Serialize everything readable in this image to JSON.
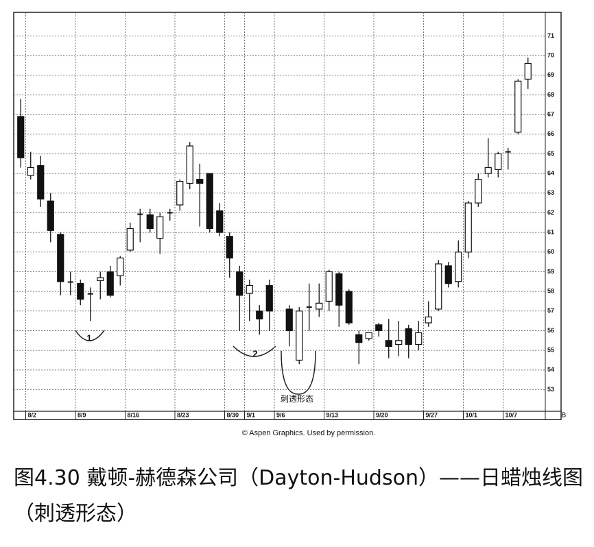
{
  "chart_data": {
    "type": "candlestick",
    "categories": [
      null,
      "8/2",
      null,
      null,
      null,
      null,
      "8/9",
      null,
      null,
      null,
      null,
      "8/16",
      null,
      null,
      null,
      null,
      "8/23",
      null,
      null,
      null,
      null,
      "8/30",
      null,
      "9/1",
      null,
      null,
      "9/6",
      null,
      null,
      null,
      null,
      "9/13",
      null,
      null,
      null,
      null,
      "9/20",
      null,
      null,
      null,
      null,
      "9/27",
      null,
      null,
      null,
      "10/1",
      null,
      null,
      null,
      "10/7",
      null,
      null
    ],
    "open": [
      66.9,
      63.9,
      64.4,
      62.6,
      60.9,
      58.5,
      58.4,
      57.9,
      58.55,
      59.0,
      58.8,
      60.1,
      61.95,
      61.9,
      60.7,
      62.0,
      62.4,
      63.5,
      63.7,
      64.0,
      62.1,
      60.8,
      59.0,
      57.9,
      57.0,
      58.3,
      null,
      57.1,
      54.5,
      57.2,
      57.1,
      57.5,
      58.9,
      58.0,
      55.8,
      55.6,
      56.3,
      55.5,
      55.3,
      56.1,
      55.3,
      56.4,
      57.1,
      59.3,
      58.5,
      60.0,
      62.5,
      64.0,
      64.2,
      65.1,
      66.1,
      68.8
    ],
    "high": [
      67.8,
      65.1,
      64.9,
      63.0,
      61.0,
      59.0,
      58.6,
      58.2,
      59.0,
      59.3,
      59.8,
      61.5,
      62.2,
      62.2,
      62.0,
      62.2,
      63.7,
      65.6,
      64.5,
      64.0,
      62.5,
      61.0,
      59.3,
      58.6,
      57.3,
      58.6,
      null,
      57.3,
      57.2,
      58.4,
      58.4,
      59.1,
      59.0,
      58.1,
      56.0,
      55.9,
      56.4,
      56.6,
      56.5,
      56.3,
      56.5,
      57.5,
      59.6,
      59.5,
      60.6,
      62.6,
      64.0,
      65.8,
      65.1,
      65.3,
      68.8,
      69.9
    ],
    "low": [
      64.3,
      63.7,
      62.3,
      60.5,
      57.8,
      57.8,
      57.3,
      56.5,
      57.6,
      57.7,
      58.3,
      60.0,
      60.5,
      61.0,
      59.9,
      61.6,
      62.1,
      63.2,
      61.3,
      61.0,
      60.8,
      58.7,
      56.0,
      56.5,
      55.8,
      56.0,
      null,
      55.2,
      54.3,
      56.0,
      56.7,
      57.0,
      56.2,
      56.3,
      54.3,
      55.5,
      55.7,
      54.6,
      54.7,
      54.6,
      55.0,
      56.2,
      57.0,
      58.2,
      58.2,
      59.7,
      62.3,
      63.8,
      63.8,
      64.2,
      66.0,
      68.3
    ],
    "close": [
      64.8,
      64.3,
      62.7,
      61.1,
      58.5,
      58.45,
      57.6,
      57.85,
      58.7,
      57.8,
      59.7,
      61.2,
      61.9,
      61.2,
      61.8,
      62.0,
      63.6,
      65.4,
      63.5,
      61.2,
      61.0,
      59.7,
      57.8,
      58.3,
      56.6,
      57.0,
      null,
      56.0,
      57.0,
      57.2,
      57.4,
      59.0,
      57.3,
      56.4,
      55.4,
      55.9,
      56.0,
      55.2,
      55.5,
      55.3,
      55.9,
      56.7,
      59.4,
      58.4,
      60.0,
      62.5,
      63.7,
      64.3,
      65.0,
      65.1,
      68.7,
      69.6
    ],
    "up_color": "#ffffff",
    "down_color": "#111111",
    "ylim": [
      51.9,
      72.2
    ],
    "yticks": [
      53,
      54,
      55,
      56,
      57,
      58,
      59,
      60,
      61,
      62,
      63,
      64,
      65,
      66,
      67,
      68,
      69,
      70,
      71
    ],
    "grid": true,
    "axis_corner_label": "B",
    "annotations": [
      "1",
      "2",
      "刺透形态"
    ],
    "credit": "© Aspen Graphics. Used by permission."
  },
  "caption": "图4.30 戴顿-赫德森公司（Dayton-Hudson）——日蜡烛线图（刺透形态）"
}
